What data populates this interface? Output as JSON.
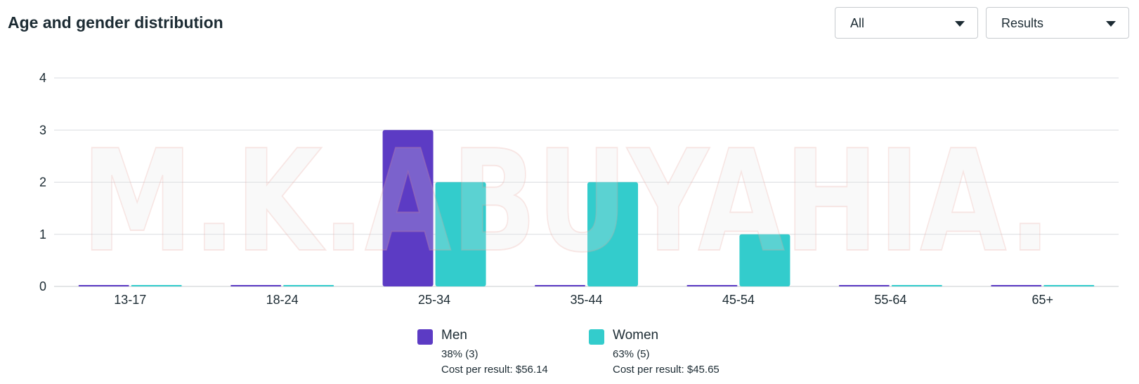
{
  "header": {
    "title": "Age and gender distribution",
    "filter_all": "All",
    "filter_results": "Results"
  },
  "watermark": {
    "text": "M.K.ABUYAHIA."
  },
  "colors": {
    "men": "#5c3bc4",
    "women": "#33cccc",
    "grid": "#dadde1"
  },
  "chart_data": {
    "type": "bar",
    "categories": [
      "13-17",
      "18-24",
      "25-34",
      "35-44",
      "45-54",
      "55-64",
      "65+"
    ],
    "series": [
      {
        "name": "Men",
        "values": [
          0,
          0,
          3,
          0,
          0,
          0,
          0
        ]
      },
      {
        "name": "Women",
        "values": [
          0,
          0,
          2,
          2,
          1,
          0,
          0
        ]
      }
    ],
    "yticks": [
      "0",
      "1",
      "2",
      "3",
      "4"
    ],
    "ylim": [
      0,
      4
    ],
    "grid": true,
    "legend_position": "bottom",
    "title": "",
    "xlabel": "",
    "ylabel": ""
  },
  "legend": [
    {
      "name": "Men",
      "pct": "38% (3)",
      "cpr": "Cost per result: $56.14"
    },
    {
      "name": "Women",
      "pct": "63% (5)",
      "cpr": "Cost per result: $45.65"
    }
  ]
}
